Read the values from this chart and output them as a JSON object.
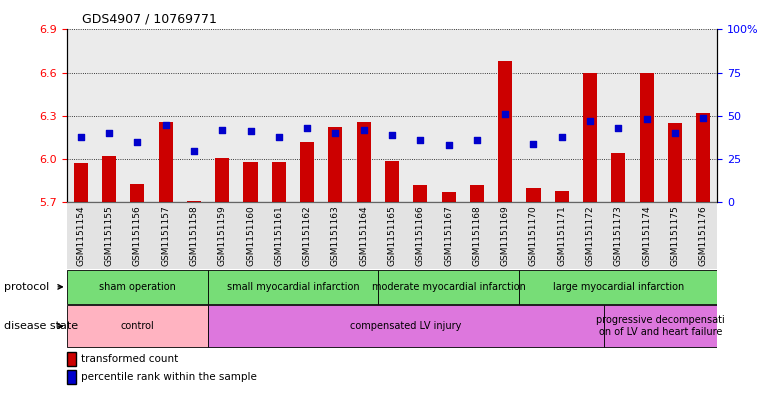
{
  "title": "GDS4907 / 10769771",
  "samples": [
    "GSM1151154",
    "GSM1151155",
    "GSM1151156",
    "GSM1151157",
    "GSM1151158",
    "GSM1151159",
    "GSM1151160",
    "GSM1151161",
    "GSM1151162",
    "GSM1151163",
    "GSM1151164",
    "GSM1151165",
    "GSM1151166",
    "GSM1151167",
    "GSM1151168",
    "GSM1151169",
    "GSM1151170",
    "GSM1151171",
    "GSM1151172",
    "GSM1151173",
    "GSM1151174",
    "GSM1151175",
    "GSM1151176"
  ],
  "bar_values": [
    5.97,
    6.02,
    5.83,
    6.26,
    5.71,
    6.01,
    5.98,
    5.98,
    6.12,
    6.22,
    6.26,
    5.99,
    5.82,
    5.77,
    5.82,
    6.68,
    5.8,
    5.78,
    6.6,
    6.04,
    6.6,
    6.25,
    6.32
  ],
  "dot_values": [
    38,
    40,
    35,
    45,
    30,
    42,
    41,
    38,
    43,
    40,
    42,
    39,
    36,
    33,
    36,
    51,
    34,
    38,
    47,
    43,
    48,
    40,
    49
  ],
  "ylim_left": [
    5.7,
    6.9
  ],
  "ylim_right": [
    0,
    100
  ],
  "yticks_left": [
    5.7,
    6.0,
    6.3,
    6.6,
    6.9
  ],
  "yticks_right": [
    0,
    25,
    50,
    75,
    100
  ],
  "bar_color": "#cc0000",
  "dot_color": "#0000cc",
  "bar_bottom": 5.7,
  "prot_groups": [
    {
      "label": "sham operation",
      "start": 0,
      "end": 4
    },
    {
      "label": "small myocardial infarction",
      "start": 5,
      "end": 10
    },
    {
      "label": "moderate myocardial infarction",
      "start": 11,
      "end": 15
    },
    {
      "label": "large myocardial infarction",
      "start": 16,
      "end": 22
    }
  ],
  "dis_groups": [
    {
      "label": "control",
      "start": 0,
      "end": 4,
      "color": "#ffb3c1"
    },
    {
      "label": "compensated LV injury",
      "start": 5,
      "end": 18,
      "color": "#dd77dd"
    },
    {
      "label": "progressive decompensati\non of LV and heart failure",
      "start": 19,
      "end": 22,
      "color": "#dd77dd"
    }
  ],
  "prot_color": "#77dd77",
  "protocol_label": "protocol",
  "disease_label": "disease state",
  "legend_bar": "transformed count",
  "legend_dot": "percentile rank within the sample",
  "col_bg_color": "#c8c8c8",
  "plot_bg": "#ffffff"
}
